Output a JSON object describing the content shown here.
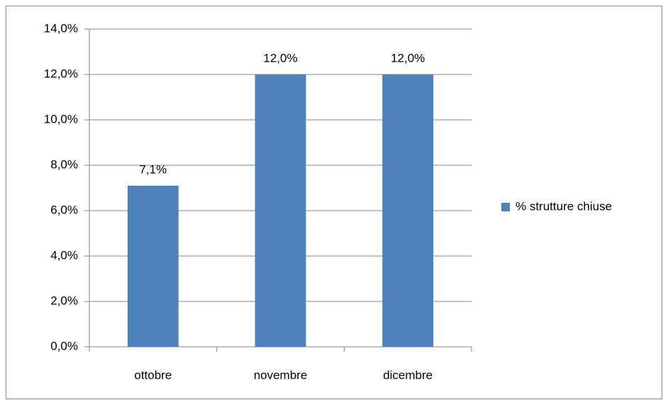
{
  "chart_data": {
    "type": "bar",
    "categories": [
      "ottobre",
      "novembre",
      "dicembre"
    ],
    "series": [
      {
        "name": "% strutture chiuse",
        "color": "#4f81bd",
        "values": [
          7.1,
          12.0,
          12.0
        ],
        "value_labels": [
          "7,1%",
          "12,0%",
          "12,0%"
        ]
      }
    ],
    "ylim": [
      0,
      14
    ],
    "yticks": [
      {
        "value": 0,
        "label": "0,0%"
      },
      {
        "value": 2,
        "label": "2,0%"
      },
      {
        "value": 4,
        "label": "4,0%"
      },
      {
        "value": 6,
        "label": "6,0%"
      },
      {
        "value": 8,
        "label": "8,0%"
      },
      {
        "value": 10,
        "label": "10,0%"
      },
      {
        "value": 12,
        "label": "12,0%"
      },
      {
        "value": 14,
        "label": "14,0%"
      }
    ],
    "grid": true,
    "legend": "right"
  }
}
